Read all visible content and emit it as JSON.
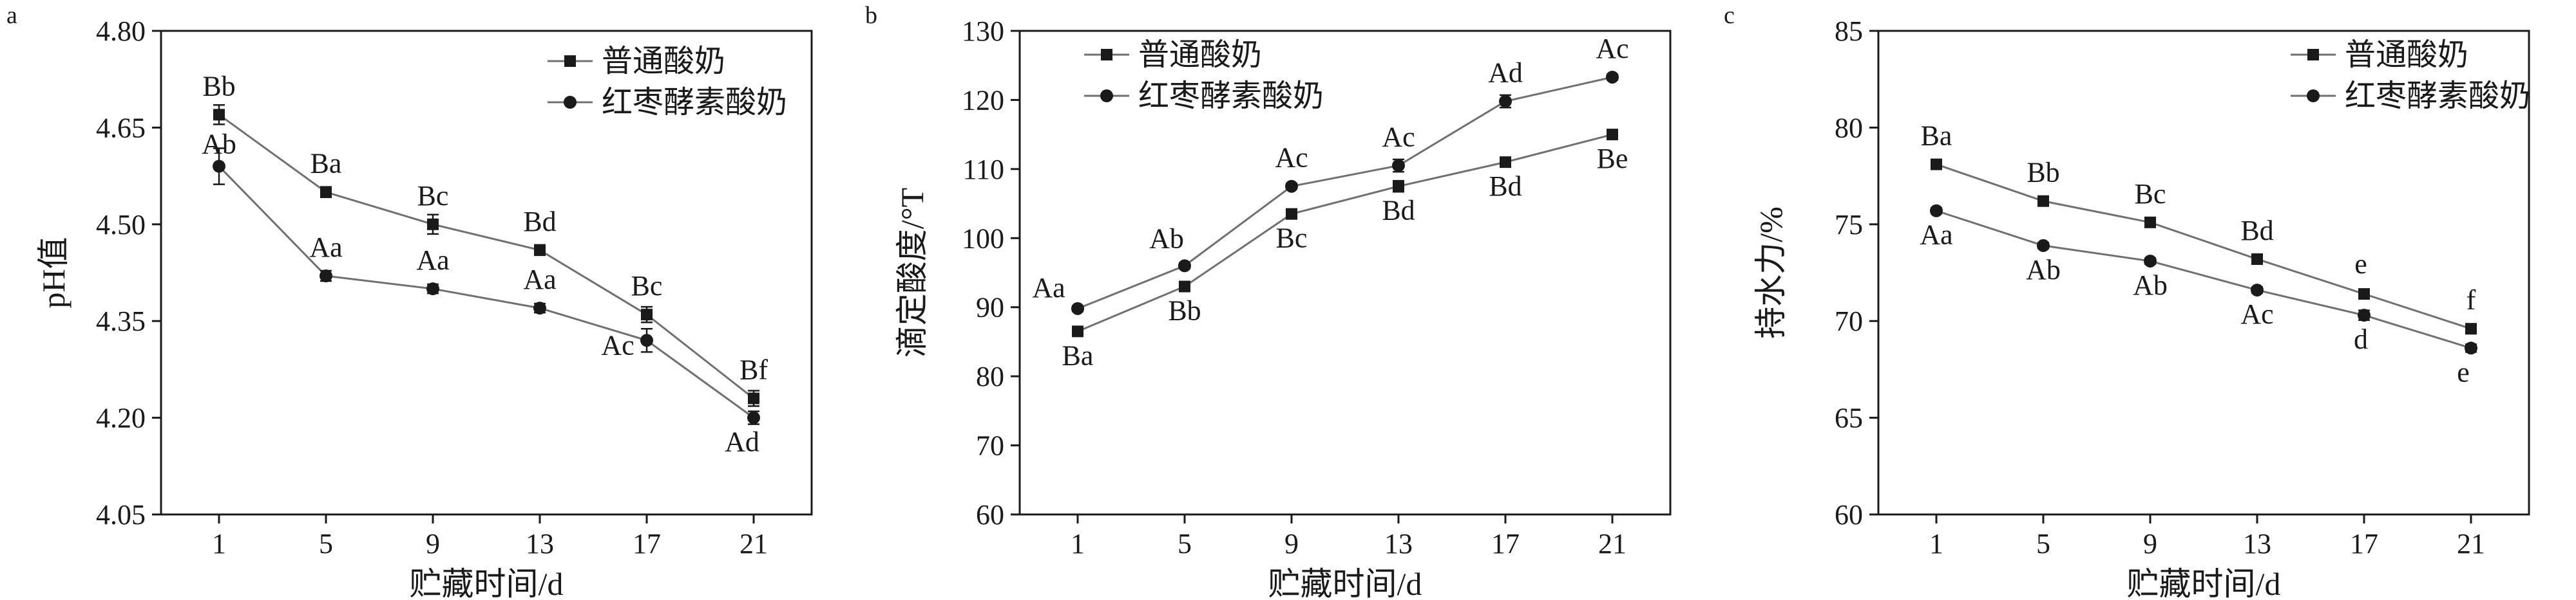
{
  "chart_data": [
    {
      "type": "line",
      "panel_label": "a",
      "xlabel": "贮藏时间/d",
      "ylabel": "pH值",
      "x": [
        1,
        5,
        9,
        13,
        17,
        21
      ],
      "xticks": [
        "1",
        "5",
        "9",
        "13",
        "17",
        "21"
      ],
      "ylim": [
        4.05,
        4.8
      ],
      "yticks": [
        "4.05",
        "4.20",
        "4.35",
        "4.50",
        "4.65",
        "4.80"
      ],
      "grid": false,
      "legend_position": "top-right",
      "series": [
        {
          "name": "普通酸奶",
          "marker": "square",
          "values": [
            4.67,
            4.55,
            4.5,
            4.46,
            4.36,
            4.23
          ],
          "errors": [
            0.015,
            0.008,
            0.015,
            0.008,
            0.012,
            0.012
          ],
          "labels": [
            "Bb",
            "Ba",
            "Bc",
            "Bd",
            "Bc",
            "Bf"
          ]
        },
        {
          "name": "红枣酵素酸奶",
          "marker": "circle",
          "values": [
            4.59,
            4.42,
            4.4,
            4.37,
            4.32,
            4.2
          ],
          "errors": [
            0.028,
            0.008,
            0.007,
            0.007,
            0.018,
            0.01
          ],
          "labels": [
            "Ab",
            "Aa",
            "Aa",
            "Aa",
            "Ac",
            "Ad"
          ]
        }
      ]
    },
    {
      "type": "line",
      "panel_label": "b",
      "xlabel": "贮藏时间/d",
      "ylabel": "滴定酸度/°T",
      "x": [
        1,
        5,
        9,
        13,
        17,
        21
      ],
      "xticks": [
        "1",
        "5",
        "9",
        "13",
        "17",
        "21"
      ],
      "ylim": [
        60,
        130
      ],
      "yticks": [
        "60",
        "70",
        "80",
        "90",
        "100",
        "110",
        "120",
        "130"
      ],
      "grid": false,
      "legend_position": "top-left",
      "series": [
        {
          "name": "普通酸奶",
          "marker": "square",
          "values": [
            86.5,
            93.0,
            103.5,
            107.5,
            111.0,
            115.0
          ],
          "errors": [
            0.4,
            0.5,
            0.5,
            0.8,
            0.4,
            0.3
          ],
          "labels": [
            "Ba",
            "Bb",
            "Bc",
            "Bd",
            "Bd",
            "Be"
          ]
        },
        {
          "name": "红枣酵素酸奶",
          "marker": "circle",
          "values": [
            89.8,
            96.0,
            107.5,
            110.5,
            119.8,
            123.3
          ],
          "errors": [
            0.4,
            0.4,
            0.4,
            0.9,
            0.9,
            0.4
          ],
          "labels": [
            "Aa",
            "Ab",
            "Ac",
            "Ac",
            "Ad",
            "Ac"
          ]
        }
      ]
    },
    {
      "type": "line",
      "panel_label": "c",
      "xlabel": "贮藏时间/d",
      "ylabel": "持水力/%",
      "x": [
        1,
        5,
        9,
        13,
        17,
        21
      ],
      "xticks": [
        "1",
        "5",
        "9",
        "13",
        "17",
        "21"
      ],
      "ylim": [
        60,
        85
      ],
      "yticks": [
        "60",
        "65",
        "70",
        "75",
        "80",
        "85"
      ],
      "grid": false,
      "legend_position": "top-right",
      "series": [
        {
          "name": "普通酸奶",
          "marker": "square",
          "values": [
            78.1,
            76.2,
            75.1,
            73.2,
            71.4,
            69.6
          ],
          "errors": [
            0.2,
            0.15,
            0.15,
            0.15,
            0.15,
            0.2
          ],
          "labels": [
            "Ba",
            "Bb",
            "Bc",
            "Bd",
            "e",
            "f"
          ]
        },
        {
          "name": "红枣酵素酸奶",
          "marker": "circle",
          "values": [
            75.7,
            73.9,
            73.1,
            71.6,
            70.3,
            68.6
          ],
          "errors": [
            0.15,
            0.15,
            0.15,
            0.15,
            0.25,
            0.2
          ],
          "labels": [
            "Aa",
            "Ab",
            "Ab",
            "Ac",
            "d",
            "e"
          ]
        }
      ]
    }
  ]
}
